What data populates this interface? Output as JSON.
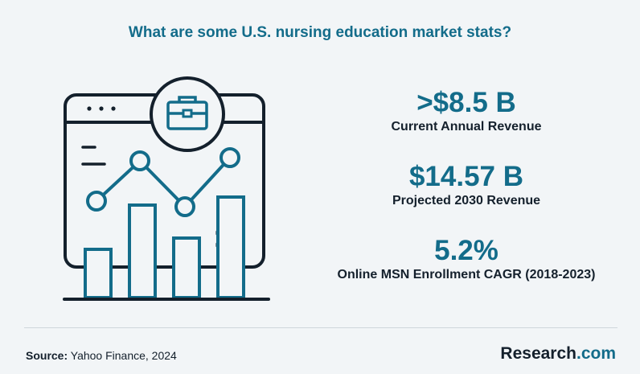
{
  "title": "What are some U.S. nursing education market stats?",
  "stats": [
    {
      "value": ">$8.5 B",
      "label": "Current Annual Revenue"
    },
    {
      "value": "$14.57 B",
      "label": "Projected 2030 Revenue"
    },
    {
      "value": "5.2%",
      "label": "Online MSN Enrollment CAGR (2018-2023)"
    }
  ],
  "footer": {
    "source_label": "Source:",
    "source_text": "Yahoo Finance, 2024",
    "brand_name": "Research",
    "brand_suffix": ".com"
  },
  "colors": {
    "accent": "#136c8a",
    "text": "#14202c",
    "background": "#f2f5f7"
  },
  "icons": [
    "browser-window-icon",
    "briefcase-icon",
    "bar-chart-icon",
    "line-graph-icon"
  ]
}
